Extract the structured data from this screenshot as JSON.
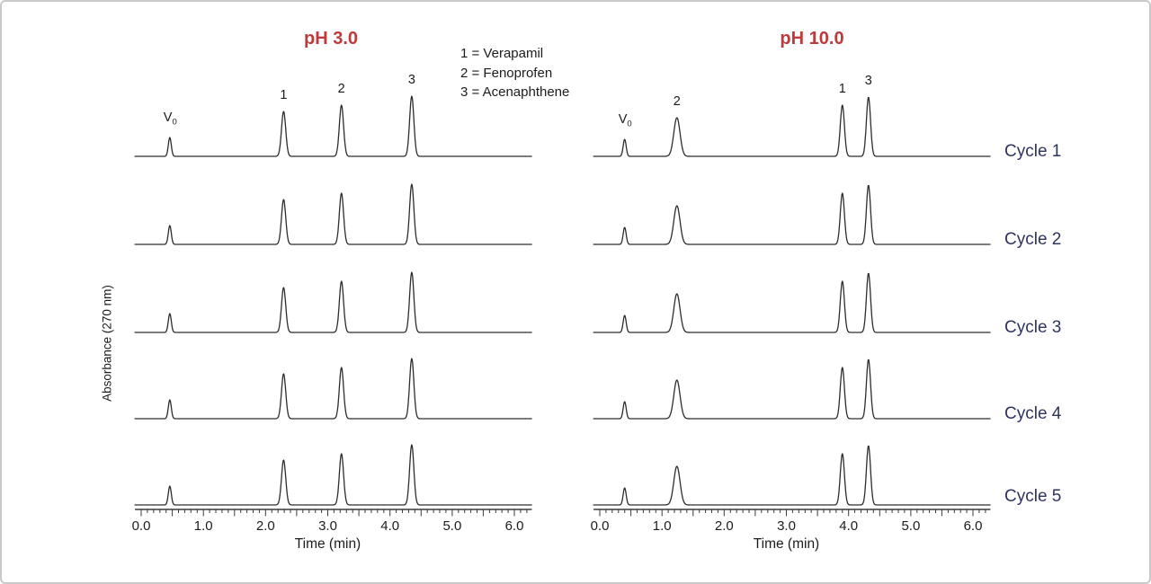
{
  "colors": {
    "title_red": "#BE3A3C",
    "cycle_navy": "#2F3360",
    "trace": "#2D2D2D",
    "axis": "#3A3A3A",
    "text": "#1C1C1C",
    "frame": "#C9C9C9"
  },
  "legend": {
    "lines": [
      "1 =  Verapamil",
      "2 =  Fenoprofen",
      "3 =  Acenaphthene"
    ]
  },
  "chart_data": [
    {
      "type": "line",
      "title": "pH 3.0",
      "xlabel": "Time (min)",
      "ylabel": "Absorbance (270 nm)",
      "xlim": [
        0,
        6.25
      ],
      "x_ticks": [
        0,
        1,
        2,
        3,
        4,
        5,
        6
      ],
      "x_tick_labels": [
        "0.0",
        "1.0",
        "2.0",
        "3.0",
        "4.0",
        "5.0",
        "6.0"
      ],
      "minor_tick_step_min": 0.1,
      "grid": false,
      "series_labels": [
        "Cycle 1",
        "Cycle 2",
        "Cycle 3",
        "Cycle 4",
        "Cycle 5"
      ],
      "series_note": "Five stacked repeat-injection chromatograms with identical retention times",
      "peaks": [
        {
          "label": "V0",
          "retention_min": 0.46,
          "rel_height": 21,
          "sigma_min": 0.024
        },
        {
          "label": "1",
          "compound": "Verapamil",
          "retention_min": 2.29,
          "rel_height": 50,
          "sigma_min": 0.034
        },
        {
          "label": "2",
          "compound": "Fenoprofen",
          "retention_min": 3.22,
          "rel_height": 57,
          "sigma_min": 0.034
        },
        {
          "label": "3",
          "compound": "Acenaphthene",
          "retention_min": 4.35,
          "rel_height": 67,
          "sigma_min": 0.034
        }
      ]
    },
    {
      "type": "line",
      "title": "pH 10.0",
      "xlabel": "Time (min)",
      "ylabel": "Absorbance (270 nm)",
      "xlim": [
        0,
        6.25
      ],
      "x_ticks": [
        0,
        1,
        2,
        3,
        4,
        5,
        6
      ],
      "x_tick_labels": [
        "0.0",
        "1.0",
        "2.0",
        "3.0",
        "4.0",
        "5.0",
        "6.0"
      ],
      "minor_tick_step_min": 0.1,
      "grid": false,
      "series_labels": [
        "Cycle 1",
        "Cycle 2",
        "Cycle 3",
        "Cycle 4",
        "Cycle 5"
      ],
      "series_note": "Five stacked repeat-injection chromatograms with identical retention times",
      "peaks": [
        {
          "label": "V0",
          "retention_min": 0.4,
          "rel_height": 19,
          "sigma_min": 0.024
        },
        {
          "label": "2",
          "compound": "Fenoprofen",
          "retention_min": 1.24,
          "rel_height": 43,
          "sigma_min": 0.05
        },
        {
          "label": "1",
          "compound": "Verapamil",
          "retention_min": 3.9,
          "rel_height": 57,
          "sigma_min": 0.033
        },
        {
          "label": "3",
          "compound": "Acenaphthene",
          "retention_min": 4.32,
          "rel_height": 66,
          "sigma_min": 0.033
        }
      ]
    }
  ]
}
